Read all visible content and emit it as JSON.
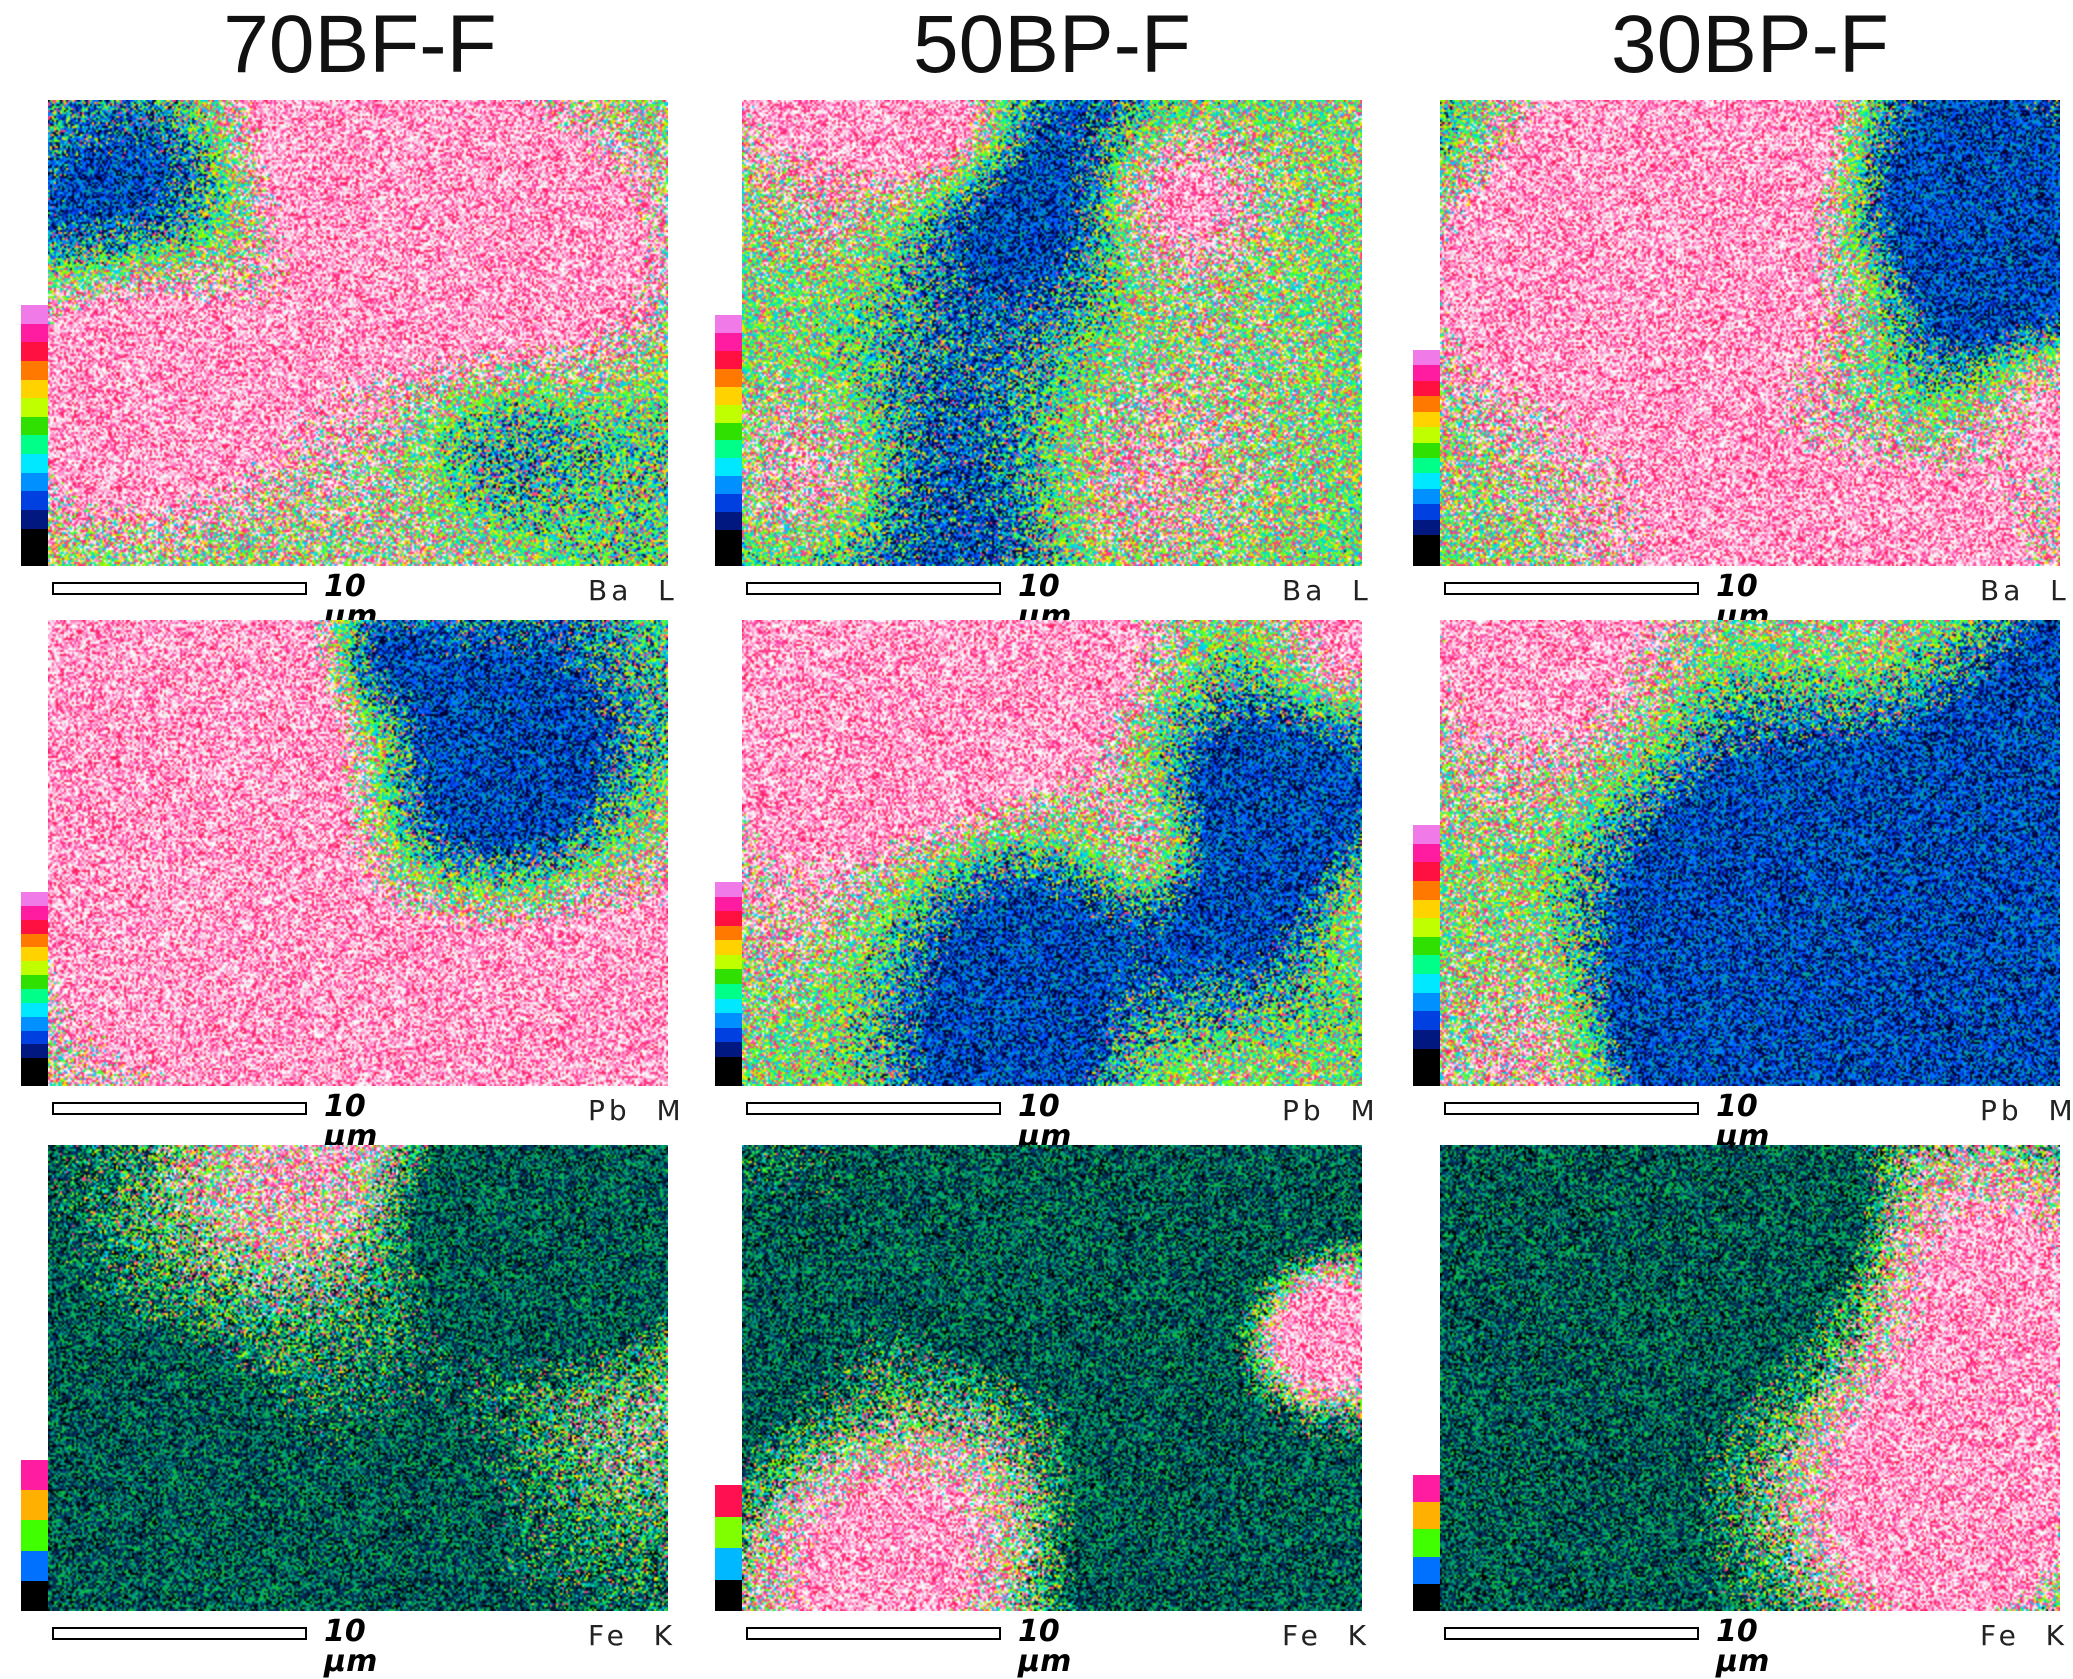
{
  "columns": [
    {
      "title": "70BF-F"
    },
    {
      "title": "50BP-F"
    },
    {
      "title": "30BP-F"
    }
  ],
  "rows": [
    {
      "element": "Ba  L"
    },
    {
      "element": "Pb  M"
    },
    {
      "element": "Fe  K"
    }
  ],
  "scale_bar_label": "10 µm",
  "colorbar_palettes": {
    "long": [
      "#f07ae8",
      "#ff1ca0",
      "#ff1040",
      "#ff7800",
      "#ffd200",
      "#c0ff00",
      "#30e000",
      "#00ff88",
      "#00e8ff",
      "#0090ff",
      "#0040e0",
      "#001880",
      "#000000",
      "#000000"
    ],
    "short": [
      "#ff1ca0",
      "#ffb000",
      "#40ff00",
      "#0070ff",
      "#000000"
    ],
    "short_b": [
      "#ff1050",
      "#80ff00",
      "#00b8ff",
      "#000000"
    ]
  }
}
